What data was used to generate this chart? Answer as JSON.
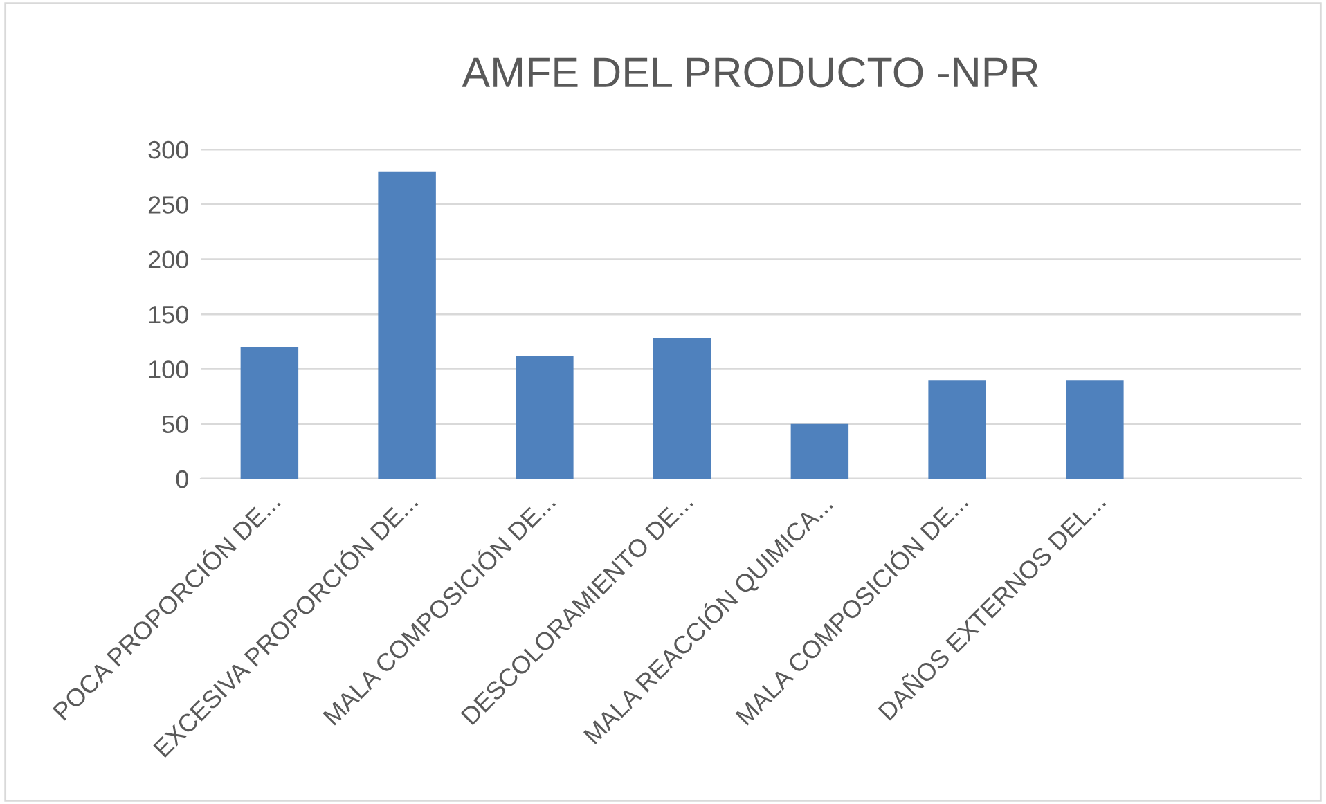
{
  "chart_data": {
    "type": "bar",
    "title": "AMFE DEL PRODUCTO -NPR",
    "categories": [
      "POCA PROPORCIÓN DE...",
      "EXCESIVA PROPORCIÓN DE...",
      "MALA COMPOSICIÓN DE...",
      "DESCOLORAMIENTO DE...",
      "MALA REACCIÓN QUIMICA...",
      "MALA COMPOSICIÓN DE...",
      "DAÑOS EXTERNOS DEL...",
      null
    ],
    "values": [
      120,
      280,
      112,
      128,
      50,
      90,
      90,
      null
    ],
    "color": "#4f81bd",
    "ylim": [
      0,
      300
    ],
    "yticks": [
      0,
      50,
      100,
      150,
      200,
      250,
      300
    ],
    "grid": "y",
    "legend": false
  }
}
